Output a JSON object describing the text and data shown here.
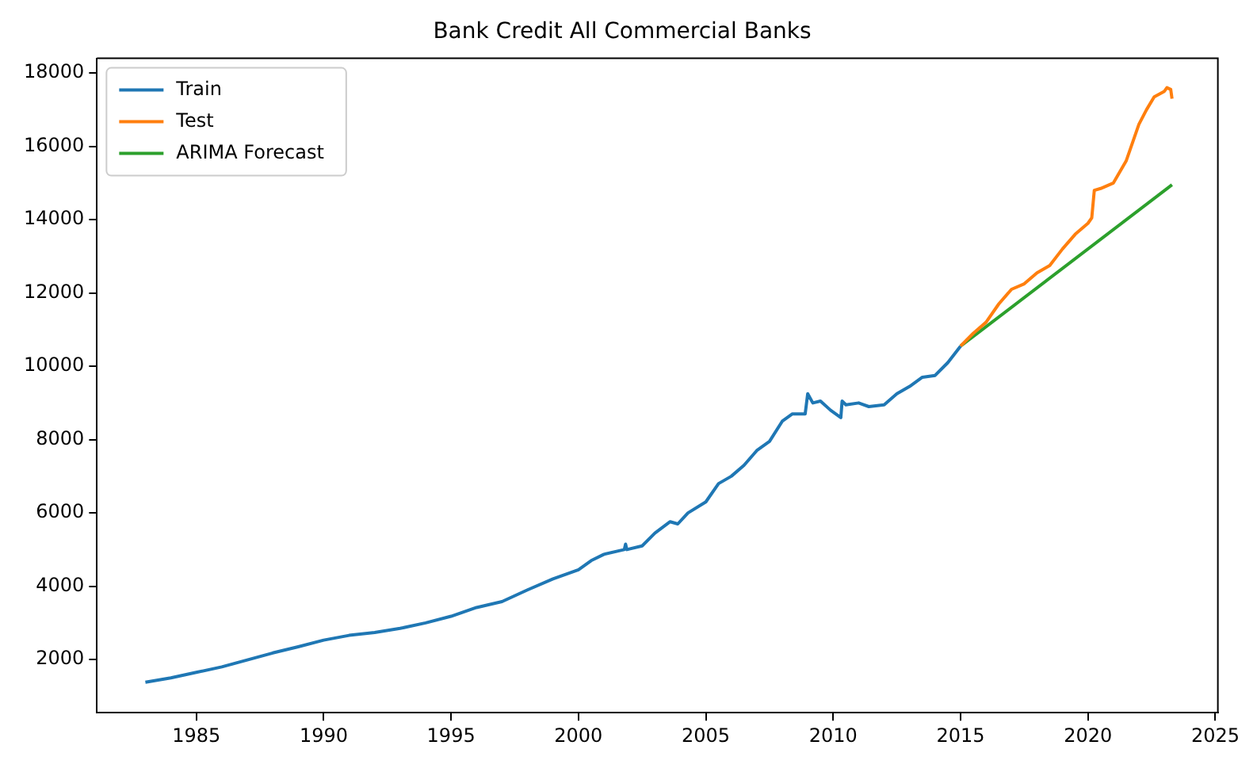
{
  "chart_data": {
    "type": "line",
    "title": "Bank Credit All Commercial Banks",
    "xlim": [
      1981.1,
      2025.1
    ],
    "xticks": [
      1985,
      1990,
      1995,
      2000,
      2005,
      2010,
      2015,
      2020,
      2025
    ],
    "ylim": [
      550,
      18400
    ],
    "yticks": [
      2000,
      4000,
      6000,
      8000,
      10000,
      12000,
      14000,
      16000,
      18000
    ],
    "grid": false,
    "legend": "top left",
    "marker": "none",
    "line_style": "solid",
    "series": [
      {
        "name": "Train",
        "color": "#1f77b4",
        "x": [
          1983,
          1984,
          1985,
          1986,
          1987,
          1988,
          1989,
          1990,
          1991,
          1992,
          1993,
          1994,
          1995,
          1996,
          1997,
          1998,
          1999,
          2000,
          2000.5,
          2001,
          2001.8,
          2001.85,
          2001.9,
          2002.5,
          2003,
          2003.6,
          2003.9,
          2004.3,
          2005,
          2005.5,
          2006,
          2006.5,
          2007,
          2007.5,
          2008,
          2008.4,
          2008.9,
          2009,
          2009.2,
          2009.5,
          2009.9,
          2010.3,
          2010.35,
          2010.5,
          2011,
          2011.4,
          2012,
          2012.5,
          2013,
          2013.5,
          2014,
          2014.5,
          2015
        ],
        "values": [
          1380,
          1500,
          1650,
          1800,
          1990,
          2180,
          2350,
          2530,
          2660,
          2740,
          2850,
          3000,
          3180,
          3420,
          3580,
          3900,
          4200,
          4450,
          4700,
          4870,
          5000,
          5150,
          5000,
          5100,
          5450,
          5760,
          5700,
          6000,
          6300,
          6800,
          7000,
          7300,
          7700,
          7950,
          8500,
          8700,
          8700,
          9250,
          9000,
          9050,
          8800,
          8600,
          9050,
          8950,
          9000,
          8900,
          8950,
          9250,
          9450,
          9700,
          9750,
          10100,
          10550
        ]
      },
      {
        "name": "Test",
        "color": "#ff7f0e",
        "x": [
          2015,
          2015.5,
          2016,
          2016.5,
          2017,
          2017.5,
          2018,
          2018.5,
          2019,
          2019.5,
          2020,
          2020.15,
          2020.25,
          2020.5,
          2021,
          2021.5,
          2022,
          2022.3,
          2022.6,
          2023,
          2023.1,
          2023.25,
          2023.3
        ],
        "values": [
          10550,
          10900,
          11200,
          11700,
          12100,
          12250,
          12550,
          12750,
          13200,
          13600,
          13900,
          14050,
          14800,
          14850,
          15000,
          15600,
          16600,
          17000,
          17350,
          17500,
          17600,
          17550,
          17300
        ]
      },
      {
        "name": "ARIMA Forecast",
        "color": "#2ca02c",
        "x": [
          2015,
          2023.3
        ],
        "values": [
          10550,
          14950
        ]
      }
    ]
  }
}
